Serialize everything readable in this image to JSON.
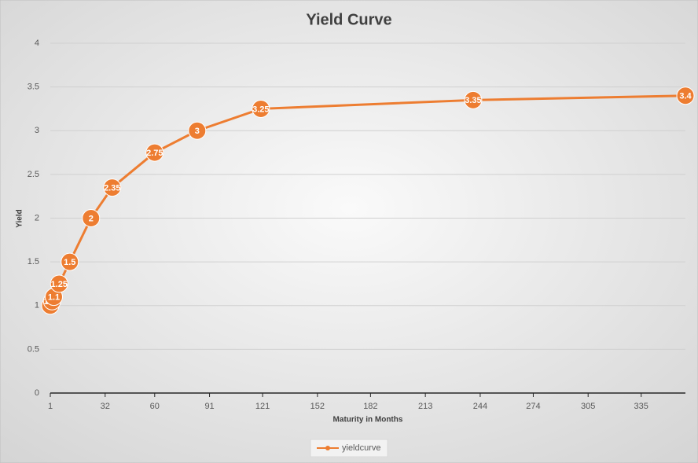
{
  "chart_data": {
    "type": "scatter-line",
    "title": "Yield Curve",
    "x_label": "Maturity in Months",
    "y_label": "Yield",
    "x": [
      1,
      2,
      3,
      6,
      12,
      24,
      36,
      60,
      84,
      120,
      240,
      360
    ],
    "series": [
      {
        "name": "yieldcurve",
        "color": "#ed7d31",
        "values": [
          1,
          1.05,
          1.1,
          1.25,
          1.5,
          2,
          2.35,
          2.75,
          3,
          3.25,
          3.35,
          3.4
        ]
      }
    ],
    "xlim": [
      1,
      360
    ],
    "xticks": [
      1,
      32,
      60,
      91,
      121,
      152,
      182,
      213,
      244,
      274,
      305,
      335
    ],
    "ylim": [
      0,
      4
    ],
    "yticks": [
      0,
      0.5,
      1,
      1.5,
      2,
      2.5,
      3,
      3.5,
      4
    ],
    "grid": true,
    "legend": "bottom"
  }
}
